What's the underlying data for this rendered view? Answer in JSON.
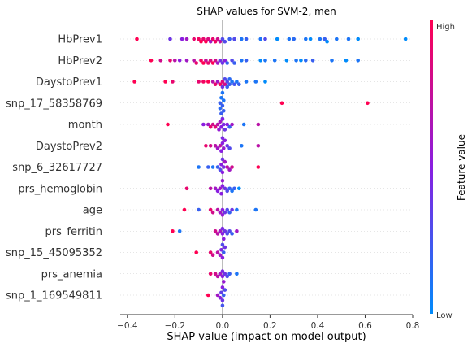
{
  "chart_data": {
    "type": "scatter",
    "subtype": "shap-beeswarm",
    "title": "SHAP values for SVM-2, men",
    "xlabel": "SHAP value (impact on model output)",
    "xlim": [
      -0.43,
      0.8
    ],
    "xticks": [
      -0.4,
      -0.2,
      0.0,
      0.2,
      0.4,
      0.6,
      0.8
    ],
    "xtick_labels": [
      "−0.4",
      "−0.2",
      "0.0",
      "0.2",
      "0.4",
      "0.6",
      "0.8"
    ],
    "colorbar": {
      "label": "Feature value",
      "high": "High",
      "low": "Low",
      "low_color": "#008bfb",
      "high_color": "#ff0052"
    },
    "features": [
      {
        "name": "HbPrev1",
        "points": [
          [
            -0.36,
            1.0
          ],
          [
            -0.22,
            0.4
          ],
          [
            -0.1,
            0.95
          ],
          [
            -0.09,
            1.0
          ],
          [
            -0.08,
            0.9
          ],
          [
            -0.07,
            1.0
          ],
          [
            -0.06,
            0.85
          ],
          [
            -0.12,
            0.9
          ],
          [
            -0.15,
            0.6
          ],
          [
            -0.04,
            0.9
          ],
          [
            -0.03,
            0.95
          ],
          [
            -0.02,
            0.8
          ],
          [
            -0.01,
            0.7
          ],
          [
            0.01,
            0.3
          ],
          [
            0.03,
            0.2
          ],
          [
            0.05,
            0.3
          ],
          [
            0.08,
            0.1
          ],
          [
            0.1,
            0.2
          ],
          [
            0.16,
            0.1
          ],
          [
            0.18,
            0.3
          ],
          [
            0.23,
            0.0
          ],
          [
            0.28,
            0.1
          ],
          [
            0.3,
            0.15
          ],
          [
            0.35,
            0.1
          ],
          [
            0.37,
            0.0
          ],
          [
            0.41,
            0.1
          ],
          [
            0.43,
            0.2
          ],
          [
            0.44,
            0.0
          ],
          [
            0.48,
            0.1
          ],
          [
            0.53,
            0.1
          ],
          [
            0.57,
            0.0
          ],
          [
            0.77,
            0.0
          ],
          [
            0.0,
            0.3
          ],
          [
            -0.05,
            0.6
          ],
          [
            -0.17,
            0.5
          ]
        ]
      },
      {
        "name": "HbPrev2",
        "points": [
          [
            -0.3,
            1.0
          ],
          [
            -0.26,
            0.8
          ],
          [
            -0.22,
            0.9
          ],
          [
            -0.2,
            0.7
          ],
          [
            -0.18,
            0.5
          ],
          [
            -0.15,
            0.6
          ],
          [
            -0.11,
            0.9
          ],
          [
            -0.09,
            0.95
          ],
          [
            -0.08,
            1.0
          ],
          [
            -0.06,
            0.9
          ],
          [
            -0.05,
            0.85
          ],
          [
            -0.04,
            1.0
          ],
          [
            -0.03,
            0.8
          ],
          [
            -0.02,
            0.6
          ],
          [
            0.0,
            0.4
          ],
          [
            0.02,
            0.2
          ],
          [
            0.05,
            0.2
          ],
          [
            0.08,
            0.1
          ],
          [
            0.1,
            0.2
          ],
          [
            0.16,
            0.0
          ],
          [
            0.18,
            0.1
          ],
          [
            0.22,
            0.1
          ],
          [
            0.27,
            0.0
          ],
          [
            0.31,
            0.1
          ],
          [
            0.33,
            0.0
          ],
          [
            0.35,
            0.15
          ],
          [
            0.38,
            0.2
          ],
          [
            0.46,
            0.1
          ],
          [
            0.52,
            0.0
          ],
          [
            0.57,
            0.1
          ],
          [
            0.01,
            0.5
          ],
          [
            -0.01,
            0.4
          ],
          [
            0.04,
            0.3
          ],
          [
            -0.12,
            0.7
          ],
          [
            -0.07,
            0.75
          ]
        ]
      },
      {
        "name": "DaystoPrev1",
        "points": [
          [
            -0.37,
            1.0
          ],
          [
            -0.24,
            1.0
          ],
          [
            -0.21,
            0.9
          ],
          [
            -0.1,
            0.9
          ],
          [
            -0.08,
            0.95
          ],
          [
            -0.06,
            1.0
          ],
          [
            -0.03,
            0.9
          ],
          [
            -0.01,
            0.95
          ],
          [
            0.0,
            0.85
          ],
          [
            0.01,
            0.8
          ],
          [
            0.02,
            0.3
          ],
          [
            0.03,
            0.2
          ],
          [
            0.04,
            0.1
          ],
          [
            0.05,
            0.25
          ],
          [
            0.06,
            0.1
          ],
          [
            0.07,
            0.2
          ],
          [
            0.1,
            0.1
          ],
          [
            0.14,
            0.1
          ],
          [
            0.18,
            0.0
          ],
          [
            -0.02,
            0.6
          ],
          [
            0.0,
            0.4
          ],
          [
            0.01,
            0.3
          ],
          [
            0.02,
            0.2
          ],
          [
            -0.04,
            0.7
          ],
          [
            0.03,
            0.15
          ]
        ]
      },
      {
        "name": "snp_17_58358769",
        "points": [
          [
            -0.01,
            0.2
          ],
          [
            -0.005,
            0.1
          ],
          [
            0.0,
            0.2
          ],
          [
            0.005,
            0.1
          ],
          [
            -0.01,
            0.15
          ],
          [
            0.0,
            0.1
          ],
          [
            0.0,
            0.3
          ],
          [
            -0.005,
            0.2
          ],
          [
            0.005,
            0.2
          ],
          [
            0.25,
            1.0
          ],
          [
            0.61,
            1.0
          ]
        ]
      },
      {
        "name": "month",
        "points": [
          [
            -0.23,
            1.0
          ],
          [
            -0.08,
            0.5
          ],
          [
            -0.06,
            0.6
          ],
          [
            -0.05,
            0.9
          ],
          [
            -0.04,
            0.8
          ],
          [
            -0.03,
            0.85
          ],
          [
            -0.02,
            0.7
          ],
          [
            -0.01,
            0.6
          ],
          [
            0.0,
            0.5
          ],
          [
            0.01,
            0.4
          ],
          [
            0.02,
            0.5
          ],
          [
            0.03,
            0.2
          ],
          [
            0.04,
            0.6
          ],
          [
            0.09,
            0.1
          ],
          [
            0.15,
            0.7
          ],
          [
            -0.005,
            0.5
          ],
          [
            0.005,
            0.45
          ],
          [
            -0.015,
            0.55
          ]
        ]
      },
      {
        "name": "DaystoPrev2",
        "points": [
          [
            -0.07,
            0.9
          ],
          [
            -0.05,
            0.8
          ],
          [
            -0.03,
            0.7
          ],
          [
            -0.02,
            0.6
          ],
          [
            -0.01,
            0.7
          ],
          [
            0.0,
            0.5
          ],
          [
            0.01,
            0.5
          ],
          [
            0.02,
            0.4
          ],
          [
            0.03,
            0.3
          ],
          [
            0.08,
            0.1
          ],
          [
            0.15,
            0.7
          ],
          [
            -0.005,
            0.5
          ],
          [
            0.005,
            0.55
          ],
          [
            0.0,
            0.45
          ]
        ]
      },
      {
        "name": "snp_6_32617727",
        "points": [
          [
            -0.1,
            0.1
          ],
          [
            -0.06,
            0.2
          ],
          [
            -0.04,
            0.1
          ],
          [
            -0.02,
            0.2
          ],
          [
            -0.01,
            0.3
          ],
          [
            0.0,
            0.5
          ],
          [
            0.01,
            0.6
          ],
          [
            0.02,
            0.7
          ],
          [
            0.03,
            0.6
          ],
          [
            0.04,
            0.8
          ],
          [
            0.15,
            1.0
          ],
          [
            0.0,
            0.4
          ],
          [
            -0.005,
            0.5
          ],
          [
            0.005,
            0.45
          ]
        ]
      },
      {
        "name": "prs_hemoglobin",
        "points": [
          [
            -0.15,
            0.9
          ],
          [
            -0.05,
            0.7
          ],
          [
            -0.03,
            0.6
          ],
          [
            -0.02,
            0.5
          ],
          [
            -0.01,
            0.6
          ],
          [
            0.0,
            0.5
          ],
          [
            0.01,
            0.4
          ],
          [
            0.02,
            0.3
          ],
          [
            0.03,
            0.2
          ],
          [
            0.04,
            0.1
          ],
          [
            0.05,
            0.2
          ],
          [
            0.07,
            0.0
          ],
          [
            0.0,
            0.55
          ],
          [
            -0.005,
            0.5
          ]
        ]
      },
      {
        "name": "age",
        "points": [
          [
            -0.16,
            1.0
          ],
          [
            -0.1,
            0.2
          ],
          [
            -0.05,
            0.9
          ],
          [
            -0.04,
            0.8
          ],
          [
            -0.02,
            0.7
          ],
          [
            -0.01,
            0.6
          ],
          [
            0.0,
            0.5
          ],
          [
            0.01,
            0.4
          ],
          [
            0.02,
            0.3
          ],
          [
            0.03,
            0.2
          ],
          [
            0.04,
            0.4
          ],
          [
            0.06,
            0.1
          ],
          [
            0.14,
            0.1
          ],
          [
            0.0,
            0.55
          ]
        ]
      },
      {
        "name": "prs_ferritin",
        "points": [
          [
            -0.21,
            1.0
          ],
          [
            -0.18,
            0.1
          ],
          [
            -0.03,
            0.8
          ],
          [
            -0.02,
            0.7
          ],
          [
            -0.01,
            0.6
          ],
          [
            0.0,
            0.5
          ],
          [
            0.01,
            0.4
          ],
          [
            0.02,
            0.3
          ],
          [
            0.03,
            0.3
          ],
          [
            0.04,
            0.2
          ],
          [
            0.06,
            0.6
          ],
          [
            0.0,
            0.45
          ],
          [
            0.005,
            0.5
          ]
        ]
      },
      {
        "name": "snp_15_45095352",
        "points": [
          [
            -0.11,
            1.0
          ],
          [
            -0.05,
            0.9
          ],
          [
            -0.04,
            0.8
          ],
          [
            -0.02,
            0.7
          ],
          [
            -0.01,
            0.6
          ],
          [
            0.0,
            0.5
          ],
          [
            0.01,
            0.4
          ],
          [
            0.0,
            0.3
          ],
          [
            0.005,
            0.2
          ],
          [
            -0.005,
            0.45
          ]
        ]
      },
      {
        "name": "prs_anemia",
        "points": [
          [
            -0.05,
            0.9
          ],
          [
            -0.03,
            0.8
          ],
          [
            -0.02,
            0.7
          ],
          [
            -0.01,
            0.6
          ],
          [
            0.0,
            0.5
          ],
          [
            0.01,
            0.4
          ],
          [
            0.02,
            0.3
          ],
          [
            0.03,
            0.2
          ],
          [
            0.06,
            0.1
          ],
          [
            0.0,
            0.45
          ],
          [
            0.005,
            0.55
          ]
        ]
      },
      {
        "name": "snp_1_169549811",
        "points": [
          [
            -0.06,
            1.0
          ],
          [
            -0.02,
            0.6
          ],
          [
            -0.01,
            0.5
          ],
          [
            0.0,
            0.4
          ],
          [
            0.01,
            0.3
          ],
          [
            0.0,
            0.5
          ],
          [
            0.005,
            0.2
          ],
          [
            -0.005,
            0.35
          ],
          [
            0.0,
            0.25
          ]
        ]
      }
    ]
  }
}
